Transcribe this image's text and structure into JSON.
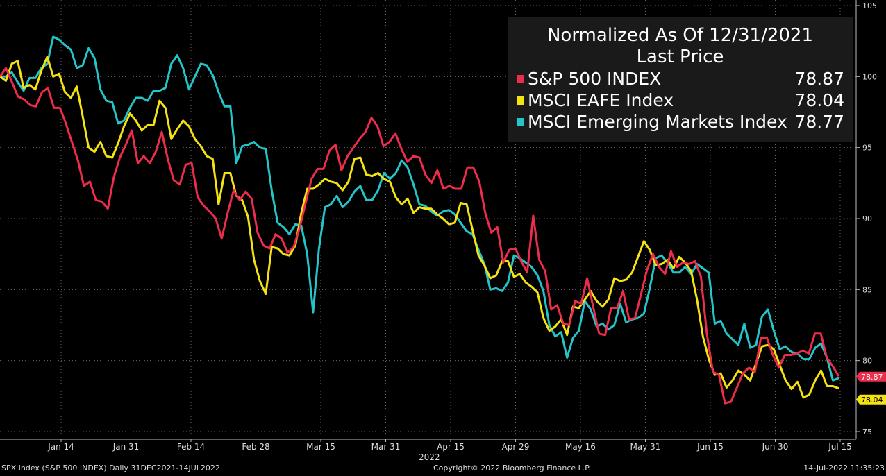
{
  "chart_data": {
    "type": "line",
    "title": "Normalized As Of 12/31/2021",
    "subtitle": "Last Price",
    "xlabel": "2022",
    "ylim": [
      74.5,
      105
    ],
    "y_ticks": [
      75,
      80,
      85,
      90,
      95,
      100,
      105
    ],
    "x_tick_labels": [
      "Jan 14",
      "Jan 31",
      "Feb 14",
      "Feb 28",
      "Mar 15",
      "Mar 31",
      "Apr 15",
      "Apr 29",
      "May 16",
      "May 31",
      "Jun 15",
      "Jun 30",
      "Jul 15"
    ],
    "grid": true,
    "legend_position": "top-right",
    "series": [
      {
        "name": "S&P 500 INDEX",
        "color": "#ee2c4b",
        "last": "78.87",
        "values": [
          100.0,
          100.6,
          99.6,
          98.6,
          98.4,
          98.0,
          97.9,
          98.9,
          99.2,
          97.8,
          97.8,
          96.7,
          95.4,
          94.1,
          92.3,
          92.6,
          91.3,
          91.2,
          90.7,
          92.9,
          94.3,
          95.2,
          96.2,
          93.9,
          94.4,
          93.9,
          94.7,
          96.1,
          94.2,
          92.7,
          92.4,
          93.8,
          93.9,
          91.5,
          90.9,
          90.5,
          90.0,
          88.6,
          90.4,
          92.0,
          91.3,
          91.9,
          91.4,
          89.0,
          88.1,
          87.9,
          88.9,
          88.6,
          87.6,
          88.0,
          89.3,
          91.1,
          92.8,
          93.5,
          93.5,
          94.8,
          95.2,
          93.4,
          94.4,
          95.0,
          95.6,
          96.1,
          97.1,
          96.5,
          95.1,
          95.4,
          96.0,
          94.9,
          94.0,
          94.4,
          94.3,
          93.1,
          92.5,
          93.4,
          92.1,
          92.3,
          92.1,
          92.1,
          93.6,
          93.6,
          92.6,
          90.4,
          89.0,
          89.4,
          86.9,
          87.8,
          87.9,
          87.0,
          86.2,
          90.2,
          87.1,
          86.3,
          83.6,
          83.9,
          82.6,
          82.5,
          84.2,
          84.0,
          85.8,
          83.8,
          81.9,
          81.8,
          83.7,
          83.7,
          84.9,
          82.9,
          83.0,
          84.7,
          86.4,
          87.5,
          86.6,
          86.1,
          87.7,
          86.6,
          86.9,
          86.8,
          87.0,
          85.9,
          81.8,
          79.2,
          79.0,
          77.0,
          77.1,
          78.1,
          79.1,
          79.5,
          79.2,
          81.6,
          81.6,
          80.4,
          79.5,
          80.4,
          80.4,
          80.5,
          80.7,
          80.5,
          81.9,
          81.9,
          80.2,
          79.6,
          78.9
        ]
      },
      {
        "name": "MSCI EAFE Index",
        "color": "#f4e211",
        "last": "78.04",
        "values": [
          100.0,
          99.7,
          100.9,
          101.1,
          99.2,
          99.4,
          99.1,
          100.4,
          101.4,
          100.0,
          100.2,
          98.9,
          98.5,
          99.3,
          97.2,
          95.0,
          94.7,
          95.4,
          94.4,
          94.3,
          95.3,
          96.5,
          97.4,
          96.9,
          96.2,
          96.6,
          96.6,
          98.3,
          97.8,
          95.6,
          96.3,
          96.9,
          96.5,
          95.6,
          95.1,
          94.4,
          94.2,
          91.0,
          93.2,
          93.2,
          91.6,
          91.3,
          90.1,
          87.1,
          85.6,
          84.7,
          88.0,
          87.9,
          87.5,
          87.4,
          88.1,
          90.4,
          92.1,
          92.1,
          92.4,
          92.8,
          92.6,
          92.5,
          92.0,
          92.6,
          94.2,
          94.3,
          93.1,
          93.0,
          93.2,
          92.8,
          92.6,
          91.5,
          91.0,
          91.4,
          90.4,
          90.8,
          90.7,
          90.7,
          90.3,
          90.0,
          89.6,
          89.7,
          91.1,
          91.0,
          89.2,
          87.4,
          86.7,
          85.8,
          86.0,
          87.0,
          87.0,
          85.9,
          86.1,
          85.5,
          85.2,
          84.8,
          83.0,
          82.1,
          82.4,
          82.9,
          81.8,
          83.8,
          83.7,
          84.3,
          84.9,
          84.2,
          83.8,
          84.3,
          85.8,
          85.6,
          85.7,
          86.2,
          87.3,
          88.4,
          87.8,
          86.7,
          86.8,
          87.1,
          86.5,
          87.3,
          86.9,
          86.3,
          84.3,
          81.7,
          80.1,
          79.0,
          79.1,
          78.1,
          78.6,
          79.3,
          79.0,
          78.6,
          79.8,
          81.0,
          81.1,
          80.8,
          79.7,
          78.6,
          78.0,
          78.5,
          77.4,
          77.6,
          78.6,
          79.3,
          78.2,
          78.2,
          78.04
        ]
      },
      {
        "name": "MSCI Emerging Markets Index",
        "color": "#23c5c9",
        "last": "78.77",
        "values": [
          100.0,
          100.0,
          100.3,
          99.6,
          99.0,
          99.9,
          99.9,
          100.6,
          100.9,
          102.8,
          102.6,
          102.2,
          101.9,
          100.6,
          100.8,
          102.0,
          101.3,
          99.1,
          98.3,
          98.2,
          96.7,
          96.9,
          97.8,
          98.5,
          98.5,
          98.3,
          99.0,
          99.0,
          99.2,
          100.9,
          101.5,
          100.6,
          99.1,
          100.0,
          100.9,
          100.8,
          100.1,
          98.9,
          97.9,
          97.9,
          93.9,
          95.1,
          95.2,
          95.4,
          95.0,
          94.9,
          92.0,
          89.7,
          89.4,
          88.9,
          89.6,
          89.5,
          87.5,
          83.4,
          87.9,
          90.8,
          91.0,
          91.6,
          90.8,
          91.2,
          91.9,
          92.3,
          91.3,
          91.3,
          92.0,
          93.2,
          92.8,
          93.2,
          94.1,
          93.6,
          92.4,
          91.0,
          90.9,
          90.5,
          90.2,
          90.5,
          90.6,
          90.3,
          89.7,
          89.1,
          88.9,
          87.8,
          86.8,
          85.0,
          85.1,
          84.9,
          85.5,
          87.4,
          87.2,
          86.9,
          86.6,
          86.0,
          84.9,
          82.5,
          81.7,
          82.0,
          80.2,
          81.6,
          82.1,
          84.2,
          83.6,
          82.4,
          82.6,
          82.2,
          82.5,
          84.0,
          82.7,
          82.9,
          83.0,
          83.3,
          85.1,
          87.2,
          87.4,
          86.9,
          86.2,
          86.2,
          86.6,
          86.1,
          86.8,
          86.5,
          86.2,
          82.6,
          82.8,
          81.9,
          81.5,
          81.1,
          82.6,
          80.9,
          81.1,
          83.1,
          83.6,
          82.1,
          80.8,
          81.0,
          80.6,
          80.5,
          80.1,
          80.1,
          80.9,
          81.2,
          80.2,
          78.6,
          78.77
        ]
      }
    ]
  },
  "footer": {
    "left": "SPX Index (S&P 500 INDEX)  Daily 31DEC2021-14JUL2022",
    "center": "Copyright© 2022 Bloomberg Finance L.P.",
    "right": "14-Jul-2022 11:35:23"
  }
}
